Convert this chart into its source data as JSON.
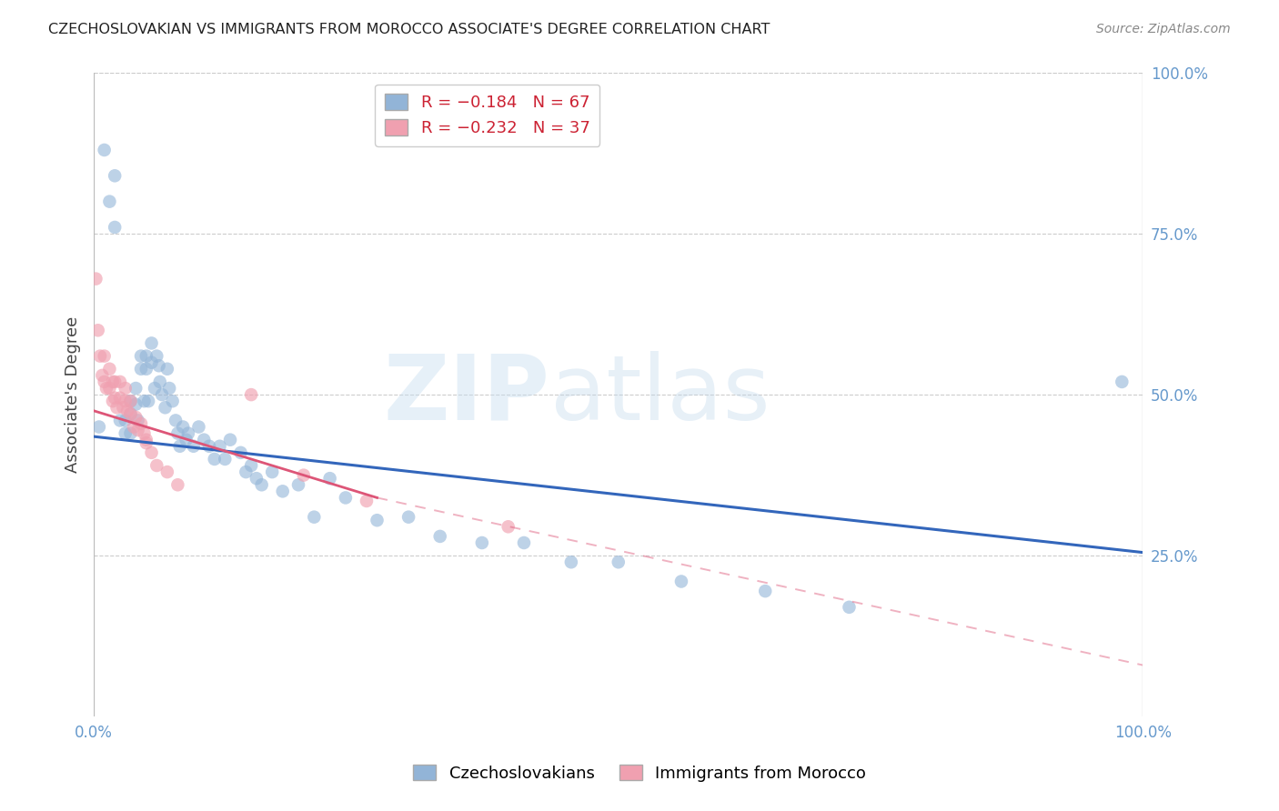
{
  "title": "CZECHOSLOVAKIAN VS IMMIGRANTS FROM MOROCCO ASSOCIATE'S DEGREE CORRELATION CHART",
  "source": "Source: ZipAtlas.com",
  "ylabel": "Associate's Degree",
  "xlim": [
    0.0,
    1.0
  ],
  "ylim": [
    0.0,
    1.0
  ],
  "yticks": [
    0.0,
    0.25,
    0.5,
    0.75,
    1.0
  ],
  "ytick_labels": [
    "",
    "25.0%",
    "50.0%",
    "75.0%",
    "100.0%"
  ],
  "blue_R": -0.184,
  "blue_N": 67,
  "pink_R": -0.232,
  "pink_N": 37,
  "blue_color": "#92b4d7",
  "pink_color": "#f0a0b0",
  "blue_line_color": "#3366bb",
  "pink_line_color": "#dd5577",
  "legend_label_blue": "Czechoslovakians",
  "legend_label_pink": "Immigrants from Morocco",
  "blue_scatter_x": [
    0.005,
    0.01,
    0.015,
    0.02,
    0.02,
    0.025,
    0.03,
    0.03,
    0.035,
    0.035,
    0.035,
    0.04,
    0.04,
    0.042,
    0.045,
    0.045,
    0.048,
    0.05,
    0.05,
    0.052,
    0.055,
    0.055,
    0.058,
    0.06,
    0.062,
    0.063,
    0.065,
    0.068,
    0.07,
    0.072,
    0.075,
    0.078,
    0.08,
    0.082,
    0.085,
    0.088,
    0.09,
    0.095,
    0.1,
    0.105,
    0.11,
    0.115,
    0.12,
    0.125,
    0.13,
    0.14,
    0.145,
    0.15,
    0.155,
    0.16,
    0.17,
    0.18,
    0.195,
    0.21,
    0.225,
    0.24,
    0.27,
    0.3,
    0.33,
    0.37,
    0.41,
    0.455,
    0.5,
    0.56,
    0.64,
    0.72,
    0.98
  ],
  "blue_scatter_y": [
    0.45,
    0.88,
    0.8,
    0.84,
    0.76,
    0.46,
    0.46,
    0.44,
    0.49,
    0.47,
    0.44,
    0.51,
    0.485,
    0.46,
    0.56,
    0.54,
    0.49,
    0.56,
    0.54,
    0.49,
    0.58,
    0.55,
    0.51,
    0.56,
    0.545,
    0.52,
    0.5,
    0.48,
    0.54,
    0.51,
    0.49,
    0.46,
    0.44,
    0.42,
    0.45,
    0.43,
    0.44,
    0.42,
    0.45,
    0.43,
    0.42,
    0.4,
    0.42,
    0.4,
    0.43,
    0.41,
    0.38,
    0.39,
    0.37,
    0.36,
    0.38,
    0.35,
    0.36,
    0.31,
    0.37,
    0.34,
    0.305,
    0.31,
    0.28,
    0.27,
    0.27,
    0.24,
    0.24,
    0.21,
    0.195,
    0.17,
    0.52
  ],
  "pink_scatter_x": [
    0.002,
    0.004,
    0.006,
    0.008,
    0.01,
    0.01,
    0.012,
    0.015,
    0.015,
    0.018,
    0.018,
    0.02,
    0.02,
    0.022,
    0.025,
    0.025,
    0.028,
    0.03,
    0.03,
    0.032,
    0.035,
    0.035,
    0.038,
    0.04,
    0.042,
    0.045,
    0.048,
    0.05,
    0.055,
    0.06,
    0.07,
    0.08,
    0.15,
    0.2,
    0.26,
    0.395,
    0.05
  ],
  "pink_scatter_y": [
    0.68,
    0.6,
    0.56,
    0.53,
    0.56,
    0.52,
    0.51,
    0.54,
    0.51,
    0.52,
    0.49,
    0.52,
    0.495,
    0.48,
    0.52,
    0.495,
    0.48,
    0.51,
    0.49,
    0.475,
    0.49,
    0.47,
    0.45,
    0.465,
    0.445,
    0.455,
    0.44,
    0.425,
    0.41,
    0.39,
    0.38,
    0.36,
    0.5,
    0.375,
    0.335,
    0.295,
    0.43
  ],
  "blue_trend_start_x": 0.0,
  "blue_trend_start_y": 0.435,
  "blue_trend_end_x": 1.0,
  "blue_trend_end_y": 0.255,
  "pink_trend_start_x": 0.0,
  "pink_trend_start_y": 0.475,
  "pink_trend_solid_end_x": 0.27,
  "pink_trend_solid_end_y": 0.34,
  "pink_trend_dash_end_x": 1.0,
  "pink_trend_dash_end_y": 0.08
}
